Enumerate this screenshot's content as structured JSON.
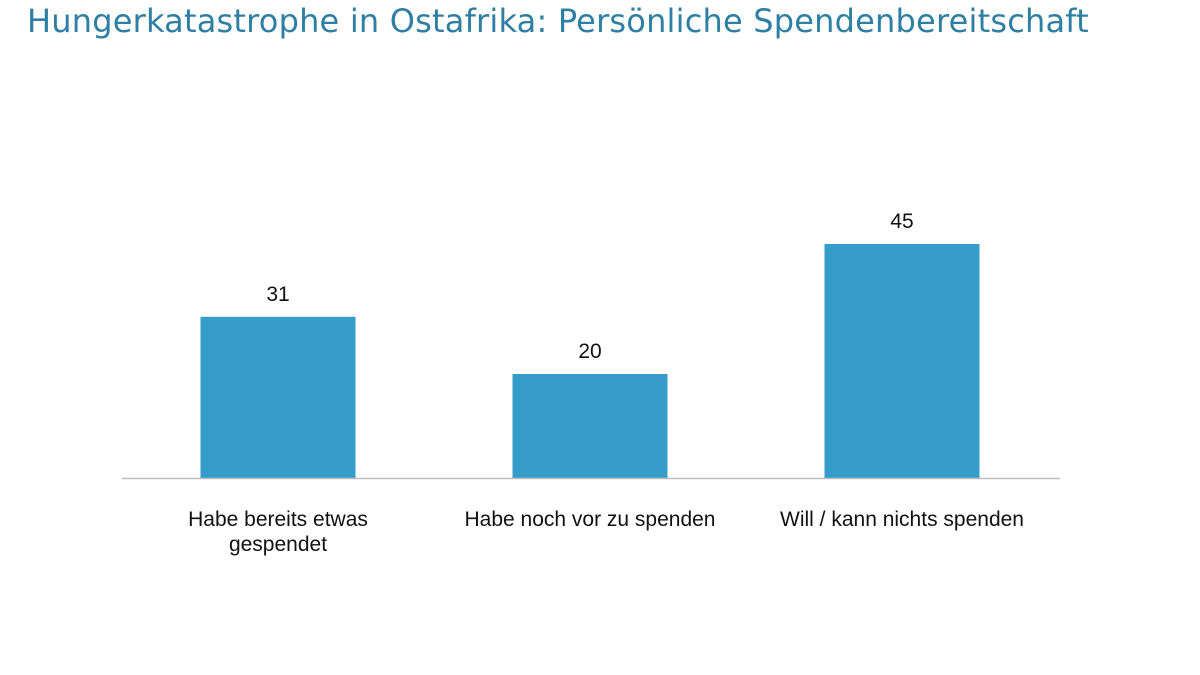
{
  "page": {
    "title": "Hungerkatastrophe in Ostafrika: Persönliche Spendenbereitschaft"
  },
  "colors": {
    "title": "#2e7fa3",
    "bar": "#369dcb",
    "axis": "#bdbdbd",
    "text": "#111111"
  },
  "chart_data": {
    "type": "bar",
    "title": "Hungerkatastrophe in Ostafrika: Persönliche Spendenbereitschaft",
    "categories": [
      [
        "Habe bereits etwas",
        "gespendet"
      ],
      [
        "Habe noch vor zu spenden"
      ],
      [
        "Will / kann nichts spenden"
      ]
    ],
    "values": [
      31,
      20,
      45
    ],
    "data_labels": [
      "31",
      "20",
      "45"
    ],
    "ylim": [
      0,
      45
    ],
    "xlabel": "",
    "ylabel": "",
    "grid": false,
    "legend": "none"
  }
}
